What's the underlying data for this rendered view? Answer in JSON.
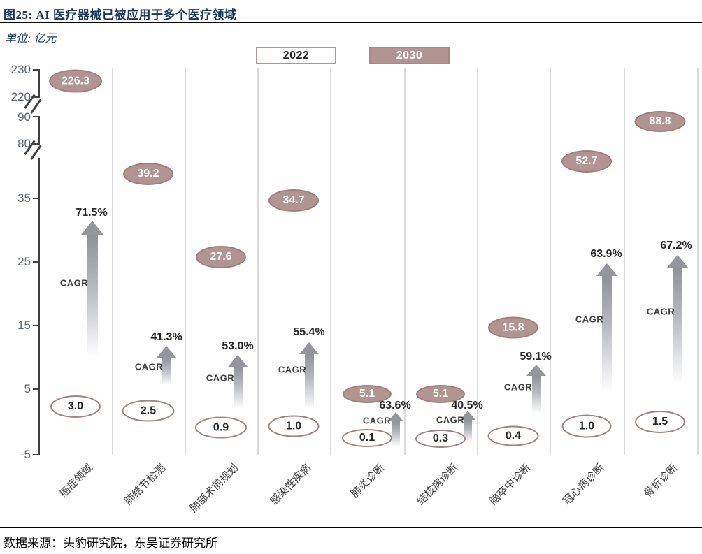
{
  "header": {
    "title": "图25:  AI 医疗器械已被应用于多个医疗领域"
  },
  "unit_label": "单位: 亿元",
  "legend": {
    "items": [
      {
        "label": "2022",
        "style": "outline"
      },
      {
        "label": "2030",
        "style": "filled"
      }
    ]
  },
  "source": "数据来源：头豹研究院，东吴证券研究所",
  "colors": {
    "title_navy": "#17365D",
    "bubble_fill": "#B29492",
    "bubble_border": "#9D807D",
    "arrow_gray": "#909297",
    "grid": "#DBDBDB",
    "axis": "#404040",
    "text_dark": "#262626"
  },
  "chart_data": {
    "type": "bar",
    "title": "AI 医疗器械已被应用于多个医疗领域",
    "unit": "亿元",
    "categories": [
      "癌症领域",
      "肺结节检测",
      "肺部术前规划",
      "感染性疾病",
      "肺炎诊断",
      "结核病诊断",
      "脑卒中诊断",
      "冠心病诊断",
      "骨折诊断"
    ],
    "series": [
      {
        "name": "2022",
        "values": [
          3.0,
          2.5,
          0.9,
          1.0,
          0.1,
          0.3,
          0.4,
          1.0,
          1.5
        ]
      },
      {
        "name": "2030",
        "values": [
          226.3,
          39.2,
          27.6,
          34.7,
          5.1,
          5.1,
          15.8,
          52.7,
          88.8
        ]
      }
    ],
    "cagr_caption": "CAGR",
    "cagr_labels": [
      "71.5%",
      "41.3%",
      "53.0%",
      "55.4%",
      "63.6%",
      "40.5%",
      "59.1%",
      "63.9%",
      "67.2%"
    ],
    "y_axis": {
      "tick_labels": [
        "230",
        "220",
        "90",
        "80",
        "35",
        "25",
        "15",
        "5",
        "-5"
      ],
      "broken_axis": true,
      "break_segments": [
        [
          220,
          230
        ],
        [
          80,
          90
        ],
        [
          -5,
          41
        ]
      ],
      "grid": "vertical-category-separators",
      "legend_position": "top"
    }
  }
}
